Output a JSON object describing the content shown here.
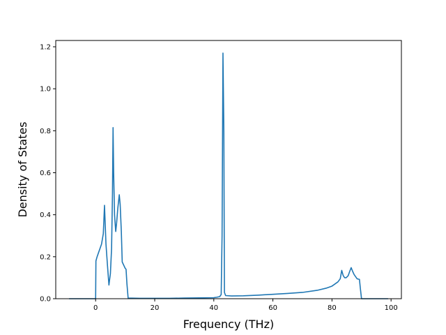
{
  "chart_data": {
    "type": "line",
    "title": "",
    "xlabel": "Frequency (THz)",
    "ylabel": "Density of States",
    "xlim": [
      -13.5,
      103.5
    ],
    "ylim": [
      0,
      1.23
    ],
    "xticks": [
      0,
      20,
      40,
      60,
      80,
      100
    ],
    "yticks": [
      0.0,
      0.2,
      0.4,
      0.6,
      0.8,
      1.0,
      1.2
    ],
    "grid": false,
    "legend": "none",
    "series": [
      {
        "color": "#1f77b4",
        "x": [
          -9,
          -5,
          0,
          0.1,
          0.5,
          1,
          2,
          2.6,
          3,
          3.5,
          4,
          4.5,
          5,
          5.4,
          5.7,
          5.9,
          6.1,
          6.4,
          6.8,
          7.1,
          7.5,
          8,
          8.3,
          8.7,
          9,
          9.5,
          10,
          10.3,
          10.6,
          11,
          15,
          20,
          25,
          30,
          35,
          40,
          41,
          42,
          42.5,
          42.8,
          43.1,
          43.4,
          43.6,
          44,
          46,
          50,
          55,
          60,
          65,
          70,
          75,
          78,
          80,
          82,
          82.8,
          83.3,
          83.8,
          84.3,
          84.8,
          85.5,
          86,
          86.5,
          87,
          87.5,
          88,
          88.5,
          89,
          89.3,
          89.6,
          90,
          92,
          95,
          99
        ],
        "y": [
          0,
          0,
          0,
          0.18,
          0.2,
          0.22,
          0.26,
          0.31,
          0.445,
          0.26,
          0.16,
          0.065,
          0.12,
          0.24,
          0.5,
          0.815,
          0.6,
          0.4,
          0.32,
          0.36,
          0.43,
          0.495,
          0.45,
          0.32,
          0.175,
          0.16,
          0.145,
          0.14,
          0.07,
          0.003,
          0.002,
          0.002,
          0.002,
          0.003,
          0.004,
          0.005,
          0.007,
          0.01,
          0.02,
          0.3,
          1.17,
          0.8,
          0.03,
          0.015,
          0.013,
          0.014,
          0.017,
          0.021,
          0.025,
          0.03,
          0.04,
          0.05,
          0.06,
          0.08,
          0.095,
          0.135,
          0.11,
          0.1,
          0.1,
          0.11,
          0.13,
          0.148,
          0.13,
          0.115,
          0.105,
          0.095,
          0.093,
          0.092,
          0.05,
          0,
          0,
          0,
          0
        ]
      }
    ]
  }
}
